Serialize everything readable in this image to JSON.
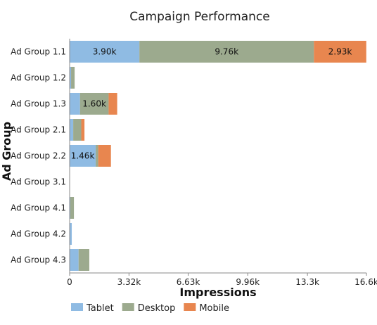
{
  "chart_data": {
    "type": "bar",
    "orientation": "horizontal",
    "stacked": true,
    "title": "Campaign Performance",
    "xlabel": "Impressions",
    "ylabel": "Ad Group",
    "xlim": [
      0,
      16600
    ],
    "x_ticks": [
      0,
      3320,
      6630,
      9960,
      13300,
      16600
    ],
    "x_tick_labels": [
      "0",
      "3.32k",
      "6.63k",
      "9.96k",
      "13.3k",
      "16.6k"
    ],
    "categories": [
      "Ad Group 1.1",
      "Ad Group 1.2",
      "Ad Group 1.3",
      "Ad Group 2.1",
      "Ad Group 2.2",
      "Ad Group 3.1",
      "Ad Group 4.1",
      "Ad Group 4.2",
      "Ad Group 4.3"
    ],
    "series": [
      {
        "name": "Tablet",
        "color": "#8fbbe3",
        "values": [
          3900,
          80,
          580,
          200,
          1460,
          0,
          40,
          120,
          500
        ]
      },
      {
        "name": "Desktop",
        "color": "#9caa8e",
        "values": [
          9760,
          200,
          1600,
          450,
          140,
          0,
          200,
          0,
          600
        ]
      },
      {
        "name": "Mobile",
        "color": "#e8864f",
        "values": [
          2930,
          0,
          480,
          180,
          710,
          0,
          0,
          0,
          0
        ]
      }
    ],
    "data_labels": [
      {
        "category": "Ad Group 1.1",
        "series": "Tablet",
        "text": "3.90k"
      },
      {
        "category": "Ad Group 1.1",
        "series": "Desktop",
        "text": "9.76k"
      },
      {
        "category": "Ad Group 1.1",
        "series": "Mobile",
        "text": "2.93k"
      },
      {
        "category": "Ad Group 1.3",
        "series": "Desktop",
        "text": "1.60k"
      },
      {
        "category": "Ad Group 2.2",
        "series": "Tablet",
        "text": "1.46k"
      }
    ],
    "grid": false,
    "legend_position": "bottom-left"
  }
}
